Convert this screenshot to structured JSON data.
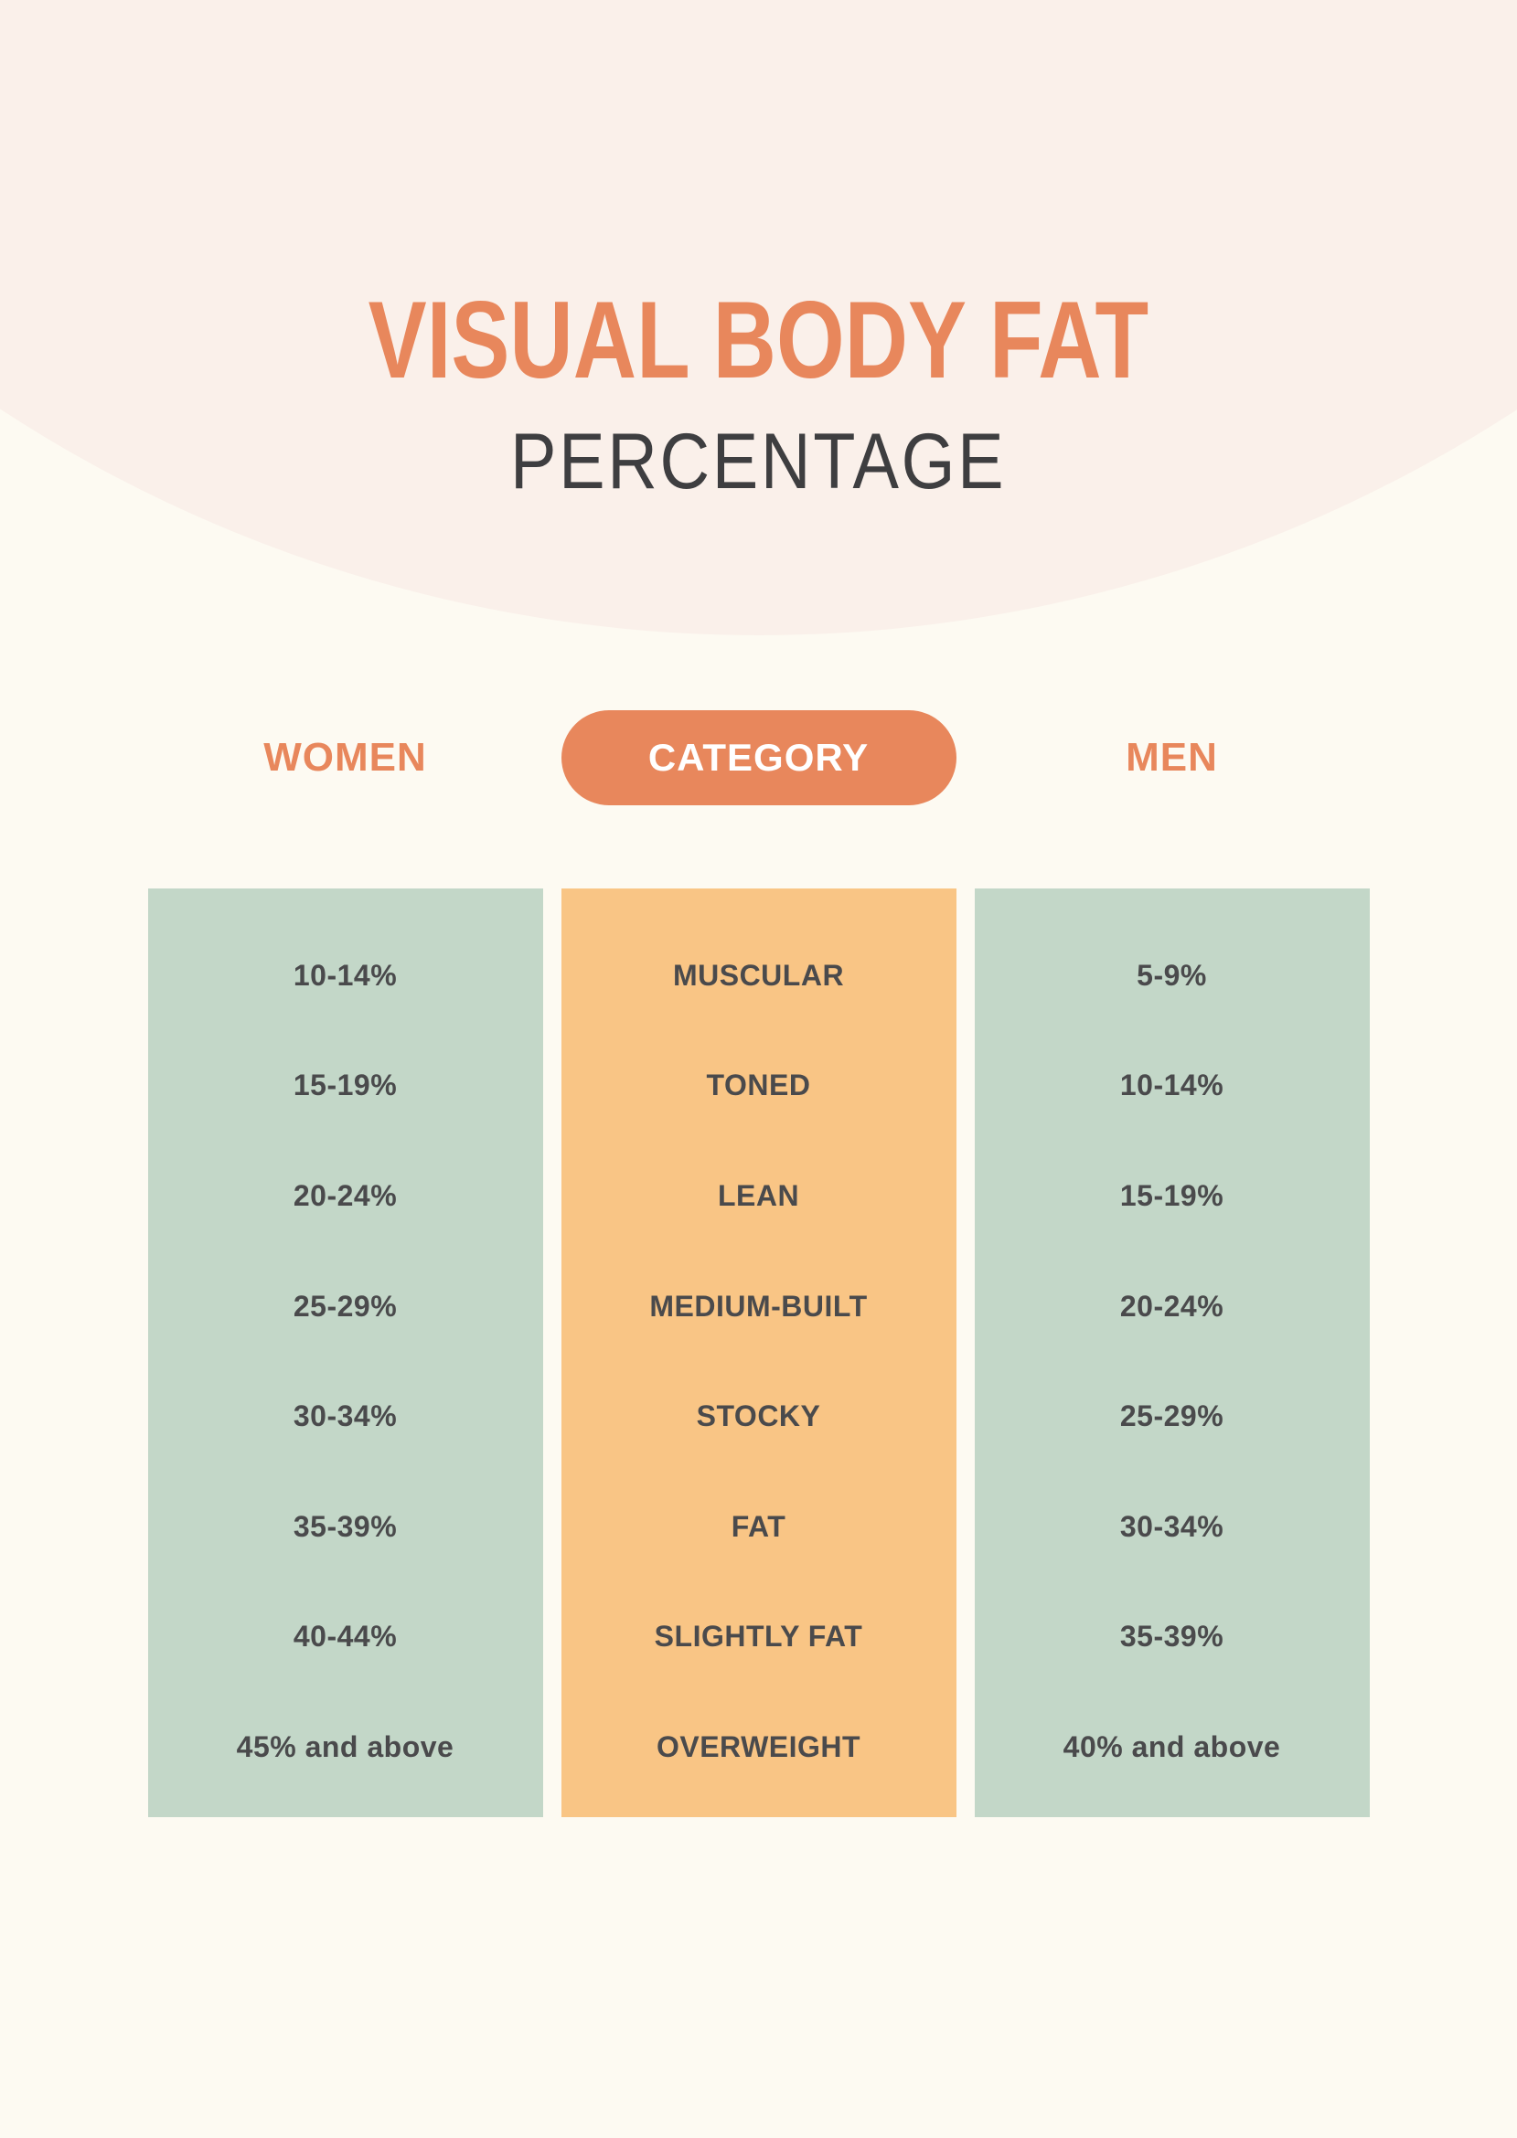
{
  "header": {
    "title": "VISUAL BODY FAT",
    "subtitle": "PERCENTAGE"
  },
  "columns_header": {
    "women": "WOMEN",
    "category": "CATEGORY",
    "men": "MEN"
  },
  "chart_data": {
    "type": "table",
    "title": "VISUAL BODY FAT PERCENTAGE",
    "columns": [
      "WOMEN",
      "CATEGORY",
      "MEN"
    ],
    "rows": [
      [
        "10-14%",
        "MUSCULAR",
        "5-9%"
      ],
      [
        "15-19%",
        "TONED",
        "10-14%"
      ],
      [
        "20-24%",
        "LEAN",
        "15-19%"
      ],
      [
        "25-29%",
        "MEDIUM-BUILT",
        "20-24%"
      ],
      [
        "30-34%",
        "STOCKY",
        "25-29%"
      ],
      [
        "35-39%",
        "FAT",
        "30-34%"
      ],
      [
        "40-44%",
        "SLIGHTLY FAT",
        "35-39%"
      ],
      [
        "45% and above",
        "OVERWEIGHT",
        "40% and above"
      ]
    ]
  },
  "colors": {
    "accent_orange": "#E8875C",
    "column_orange": "#F9C585",
    "column_green": "#C3D7C8",
    "background_top": "#FAF0EA",
    "background": "#FDFAF2",
    "text_dark": "#4A4A4C",
    "pill_text": "#FFFFFF",
    "subtitle_text": "#3E3E40"
  }
}
